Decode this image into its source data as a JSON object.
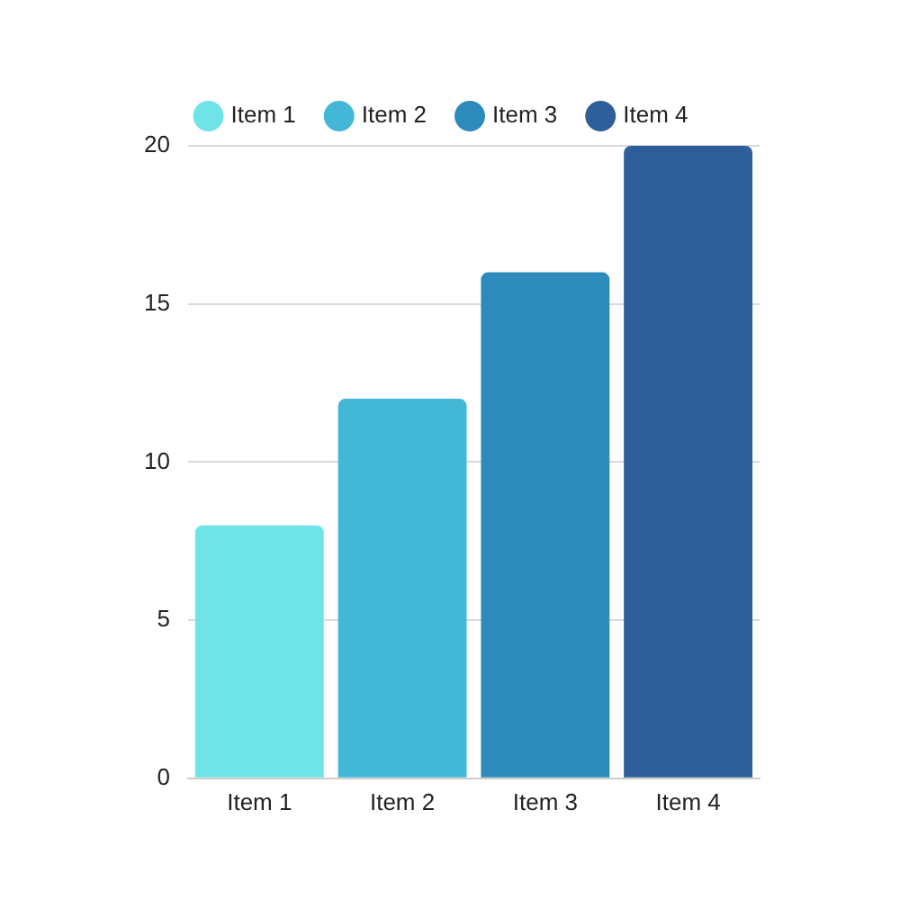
{
  "chart_data": {
    "type": "bar",
    "categories": [
      "Item 1",
      "Item 2",
      "Item 3",
      "Item 4"
    ],
    "series": [
      {
        "name": "Item 1",
        "color": "#6ee4e8",
        "values": [
          8,
          null,
          null,
          null
        ]
      },
      {
        "name": "Item 2",
        "color": "#43b8d6",
        "values": [
          null,
          12,
          null,
          null
        ]
      },
      {
        "name": "Item 3",
        "color": "#2c8bba",
        "values": [
          null,
          null,
          16,
          null
        ]
      },
      {
        "name": "Item 4",
        "color": "#2e5f9a",
        "values": [
          null,
          null,
          null,
          20
        ]
      }
    ],
    "ylim": [
      0,
      20
    ],
    "yticks": [
      0,
      5,
      10,
      15,
      20
    ],
    "grid": "y",
    "legend": "top"
  }
}
